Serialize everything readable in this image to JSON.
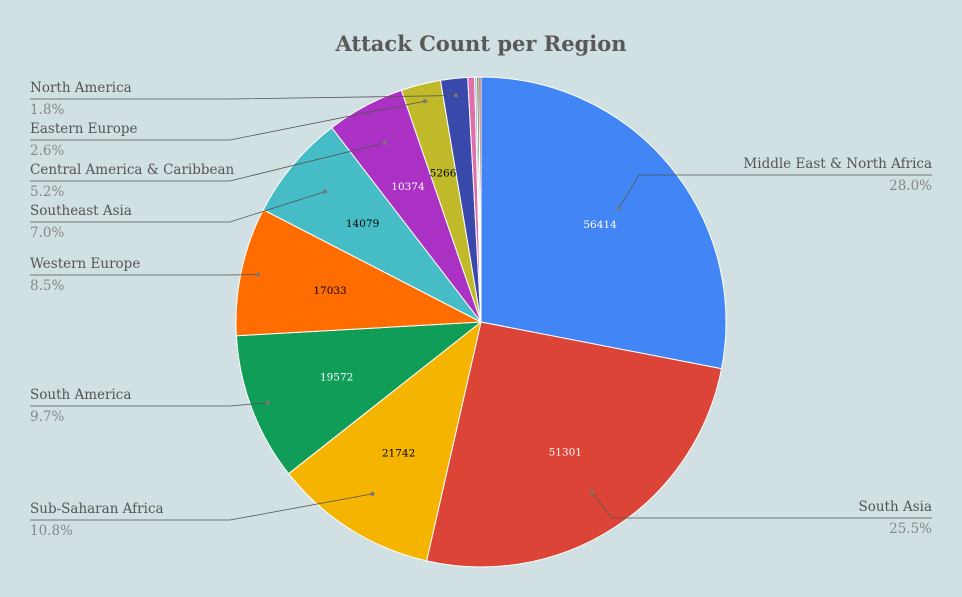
{
  "chart_data": {
    "type": "pie",
    "title": "Attack Count per Region",
    "slices": [
      {
        "label": "Middle East & North Africa",
        "value": 56414,
        "percent": "28.0%",
        "color": "#4285f4",
        "value_color": "#ffffff",
        "show_label": true,
        "show_value": true
      },
      {
        "label": "South Asia",
        "value": 51301,
        "percent": "25.5%",
        "color": "#db4437",
        "value_color": "#ffffff",
        "show_label": true,
        "show_value": true
      },
      {
        "label": "Sub-Saharan Africa",
        "value": 21742,
        "percent": "10.8%",
        "color": "#f4b400",
        "value_color": "#000000",
        "show_label": true,
        "show_value": true
      },
      {
        "label": "South America",
        "value": 19572,
        "percent": "9.7%",
        "color": "#0f9d58",
        "value_color": "#ffffff",
        "show_label": true,
        "show_value": true
      },
      {
        "label": "Western Europe",
        "value": 17033,
        "percent": "8.5%",
        "color": "#ff6d00",
        "value_color": "#000000",
        "show_label": true,
        "show_value": true
      },
      {
        "label": "Southeast Asia",
        "value": 14079,
        "percent": "7.0%",
        "color": "#46bdc6",
        "value_color": "#000000",
        "show_label": true,
        "show_value": true
      },
      {
        "label": "Central America & Caribbean",
        "value": 10374,
        "percent": "5.2%",
        "color": "#ab30c4",
        "value_color": "#ffffff",
        "show_label": true,
        "show_value": true
      },
      {
        "label": "Eastern Europe",
        "value": 5266,
        "percent": "2.6%",
        "color": "#c0ba2b",
        "value_color": "#000000",
        "show_label": true,
        "show_value": true
      },
      {
        "label": "North America",
        "value": 3580,
        "percent": "1.8%",
        "color": "#3949ab",
        "value_color": "#ffffff",
        "show_label": true,
        "show_value": false
      },
      {
        "label": "",
        "value": 900,
        "percent": "",
        "color": "#e06ea8",
        "value_color": "#ffffff",
        "show_label": false,
        "show_value": false
      },
      {
        "label": "",
        "value": 280,
        "percent": "",
        "color": "#9fa8da",
        "value_color": "#ffffff",
        "show_label": false,
        "show_value": false
      },
      {
        "label": "",
        "value": 280,
        "percent": "",
        "color": "#2e7d32",
        "value_color": "#ffffff",
        "show_label": false,
        "show_value": false
      },
      {
        "label": "",
        "value": 280,
        "percent": "",
        "color": "#c62828",
        "value_color": "#ffffff",
        "show_label": false,
        "show_value": false
      }
    ]
  }
}
